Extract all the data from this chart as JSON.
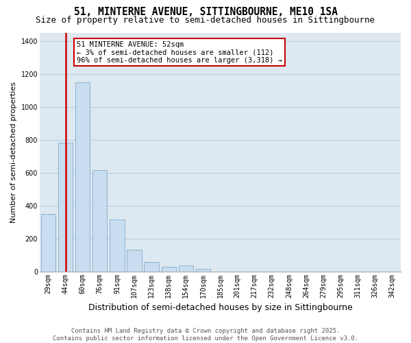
{
  "title": "51, MINTERNE AVENUE, SITTINGBOURNE, ME10 1SA",
  "subtitle": "Size of property relative to semi-detached houses in Sittingbourne",
  "xlabel": "Distribution of semi-detached houses by size in Sittingbourne",
  "ylabel": "Number of semi-detached properties",
  "categories": [
    "29sqm",
    "44sqm",
    "60sqm",
    "76sqm",
    "91sqm",
    "107sqm",
    "123sqm",
    "138sqm",
    "154sqm",
    "170sqm",
    "185sqm",
    "201sqm",
    "217sqm",
    "232sqm",
    "248sqm",
    "264sqm",
    "279sqm",
    "295sqm",
    "311sqm",
    "326sqm",
    "342sqm"
  ],
  "values": [
    350,
    780,
    1150,
    615,
    315,
    130,
    55,
    28,
    35,
    14,
    0,
    0,
    0,
    0,
    0,
    0,
    0,
    0,
    0,
    0,
    0
  ],
  "red_line_x": 1.5,
  "annotation_text": "51 MINTERNE AVENUE: 52sqm\n← 3% of semi-detached houses are smaller (112)\n96% of semi-detached houses are larger (3,318) →",
  "bar_color": "#c9ddf0",
  "bar_edge_color": "#8ab4d4",
  "red_color": "#cc0000",
  "annotation_box_color": "#cc0000",
  "grid_color": "#b8cfe0",
  "bg_color": "#dde8f0",
  "footer_text": "Contains HM Land Registry data © Crown copyright and database right 2025.\nContains public sector information licensed under the Open Government Licence v3.0.",
  "ylim": [
    0,
    1450
  ],
  "yticks": [
    0,
    200,
    400,
    600,
    800,
    1000,
    1200,
    1400
  ],
  "title_fontsize": 10.5,
  "subtitle_fontsize": 9,
  "ylabel_fontsize": 8,
  "xlabel_fontsize": 9,
  "tick_fontsize": 7,
  "annot_fontsize": 7.5,
  "footer_fontsize": 6.5
}
